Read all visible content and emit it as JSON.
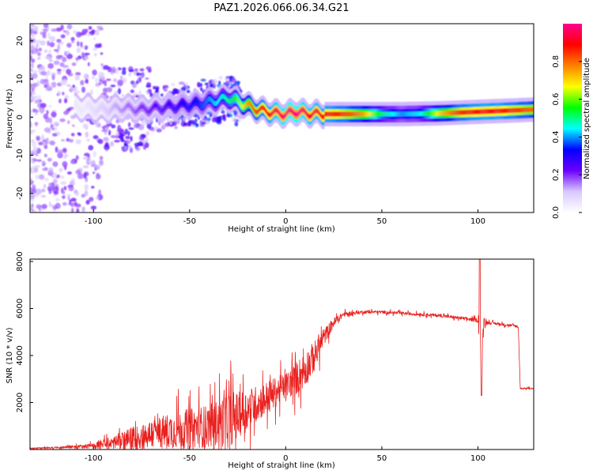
{
  "title": "PAZ1.2026.066.06.34.G21",
  "chart_data": [
    {
      "type": "heatmap",
      "name": "spectrogram",
      "xlabel": "Height of straight line (km)",
      "ylabel": "Frequency (Hz)",
      "xlim": [
        -133,
        129
      ],
      "ylim": [
        -25,
        24.5
      ],
      "xticks": [
        -100,
        -50,
        0,
        50,
        100
      ],
      "yticks": [
        20,
        10,
        0,
        -10,
        -20
      ],
      "colorbar": {
        "label": "Normalized spectral amplitude",
        "range": [
          0.0,
          1.0
        ],
        "ticks": [
          0.0,
          0.2,
          0.4,
          0.6,
          0.8
        ],
        "colormap": [
          "#ffffff",
          "#d9c7ff",
          "#6a00ff",
          "#0000ff",
          "#00ffff",
          "#00ff00",
          "#ffff00",
          "#ff8000",
          "#ff0000",
          "#ff0090"
        ]
      },
      "ridge": {
        "x": [
          -105,
          -95,
          -85,
          -75,
          -65,
          -55,
          -45,
          -35,
          -30,
          -25,
          -20,
          -15,
          -10,
          -5,
          0,
          5,
          10,
          20,
          30,
          40,
          50,
          60,
          70,
          80,
          90,
          100,
          110,
          120,
          129
        ],
        "freq": [
          2.5,
          2.0,
          2.5,
          2.0,
          2.5,
          3.0,
          3.5,
          4.5,
          5.0,
          4.0,
          3.0,
          2.0,
          1.5,
          1.0,
          0.8,
          1.5,
          1.0,
          0.8,
          0.8,
          0.8,
          0.8,
          0.8,
          0.9,
          1.0,
          1.2,
          1.4,
          1.6,
          1.8,
          2.0
        ],
        "amplitude": [
          0.05,
          0.1,
          0.15,
          0.2,
          0.25,
          0.3,
          0.35,
          0.45,
          0.5,
          0.6,
          0.75,
          0.85,
          0.9,
          0.95,
          0.98,
          1.0,
          0.95,
          0.9,
          0.85,
          0.75,
          0.5,
          0.4,
          0.45,
          0.7,
          0.85,
          0.9,
          0.9,
          0.85,
          0.8
        ]
      },
      "noise_region": "scattered low-amplitude speckle at heights below -40 km, widening to all frequencies below -95 km"
    },
    {
      "type": "line",
      "name": "snr",
      "xlabel": "Height of straight line (km)",
      "ylabel": "SNR (10 * v/v)",
      "xlim": [
        -133,
        129
      ],
      "ylim": [
        0,
        8100
      ],
      "xticks": [
        -100,
        -50,
        0,
        50,
        100
      ],
      "yticks": [
        2000,
        4000,
        6000,
        8000
      ],
      "color": "#e8211f",
      "series": [
        {
          "name": "SNR",
          "x": [
            -133,
            -120,
            -110,
            -100,
            -90,
            -80,
            -70,
            -60,
            -50,
            -40,
            -35,
            -30,
            -25,
            -20,
            -15,
            -10,
            -5,
            0,
            5,
            10,
            15,
            20,
            25,
            30,
            35,
            40,
            50,
            60,
            70,
            80,
            90,
            100,
            101,
            102,
            103,
            105,
            110,
            115,
            120,
            121,
            122,
            129
          ],
          "base": [
            50,
            80,
            120,
            150,
            300,
            450,
            650,
            800,
            900,
            1000,
            1150,
            1300,
            1450,
            1700,
            1950,
            2200,
            2450,
            2700,
            3000,
            3400,
            4000,
            4800,
            5400,
            5750,
            5800,
            5850,
            5850,
            5800,
            5750,
            5700,
            5600,
            5500,
            5200,
            3500,
            5500,
            5400,
            5350,
            5300,
            5250,
            5200,
            2600,
            2600
          ],
          "noise": [
            40,
            50,
            80,
            150,
            400,
            700,
            900,
            1100,
            1200,
            1300,
            1400,
            1800,
            1400,
            1300,
            1100,
            1000,
            900,
            800,
            1000,
            1100,
            900,
            500,
            300,
            150,
            120,
            100,
            90,
            90,
            90,
            100,
            100,
            120,
            2000,
            1500,
            300,
            100,
            80,
            80,
            80,
            80,
            50,
            50
          ]
        }
      ]
    }
  ]
}
